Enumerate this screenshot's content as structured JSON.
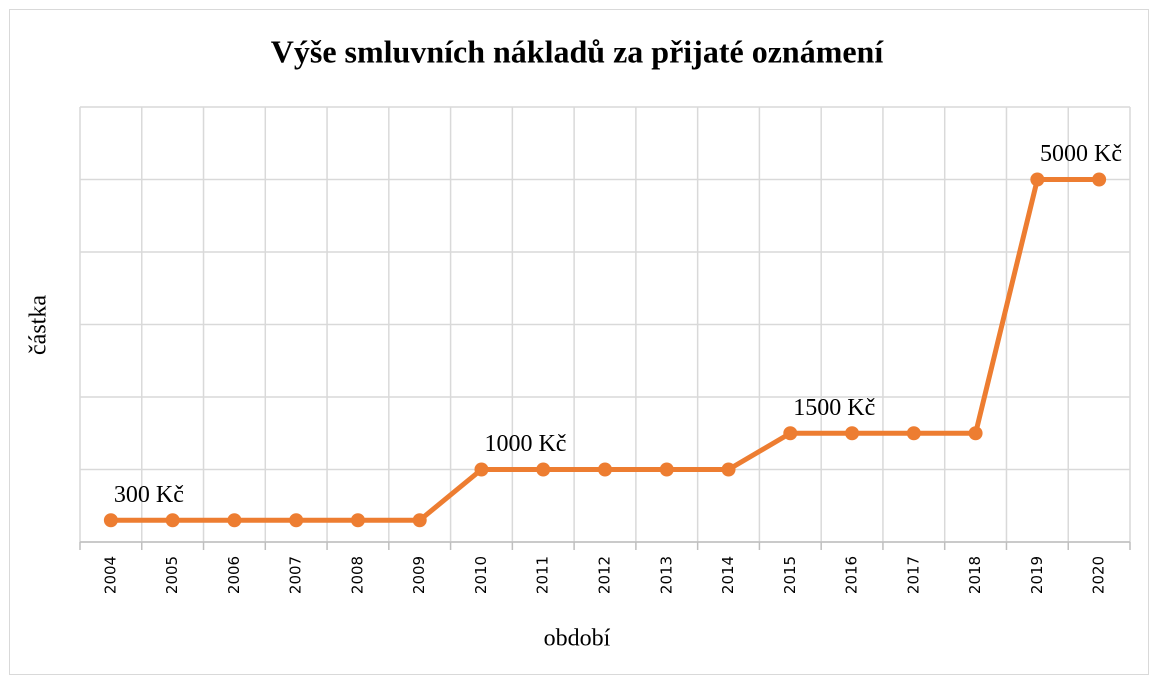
{
  "chart_data": {
    "type": "line",
    "title": "Výše smluvních nákladů za přijaté oznámení",
    "x_label": "období",
    "y_label": "částka",
    "categories": [
      "2004",
      "2005",
      "2006",
      "2007",
      "2008",
      "2009",
      "2010",
      "2011",
      "2012",
      "2013",
      "2014",
      "2015",
      "2016",
      "2017",
      "2018",
      "2019",
      "2020"
    ],
    "series": [
      {
        "color": "#ed7d31",
        "values": [
          300,
          300,
          300,
          300,
          300,
          300,
          1000,
          1000,
          1000,
          1000,
          1000,
          1500,
          1500,
          1500,
          1500,
          5000,
          5000
        ],
        "value_labels": [
          "300 Kč",
          null,
          null,
          null,
          null,
          null,
          "1000 Kč",
          null,
          null,
          null,
          null,
          "1500 Kč",
          null,
          null,
          null,
          "5000 Kč",
          null
        ]
      }
    ],
    "ylim": [
      0,
      6000
    ],
    "yticks": [
      0,
      1000,
      2000,
      3000,
      4000,
      5000,
      6000
    ],
    "grid": true
  }
}
